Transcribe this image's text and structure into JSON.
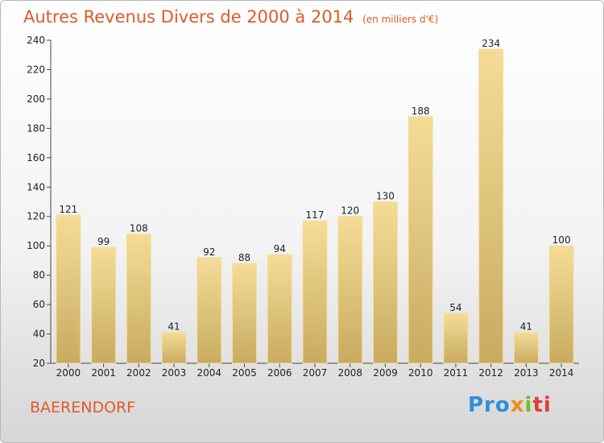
{
  "header": {
    "title": "Autres Revenus Divers de 2000 à 2014",
    "unit": "(en milliers d'€)"
  },
  "footer": {
    "town": "BAERENDORF",
    "logo": "Proxiti"
  },
  "colors": {
    "title": "#e05a2a",
    "bar_light": "#f5dc96",
    "bar_dark": "#c8ab60"
  },
  "chart_data": {
    "type": "bar",
    "categories": [
      "2000",
      "2001",
      "2002",
      "2003",
      "2004",
      "2005",
      "2006",
      "2007",
      "2008",
      "2009",
      "2010",
      "2011",
      "2012",
      "2013",
      "2014"
    ],
    "values": [
      121,
      99,
      108,
      41,
      92,
      88,
      94,
      117,
      120,
      130,
      188,
      54,
      234,
      41,
      100
    ],
    "ylim": [
      20,
      240
    ],
    "yticks": [
      20,
      40,
      60,
      80,
      100,
      120,
      140,
      160,
      180,
      200,
      220,
      240
    ],
    "grid": false,
    "legend": "none"
  }
}
